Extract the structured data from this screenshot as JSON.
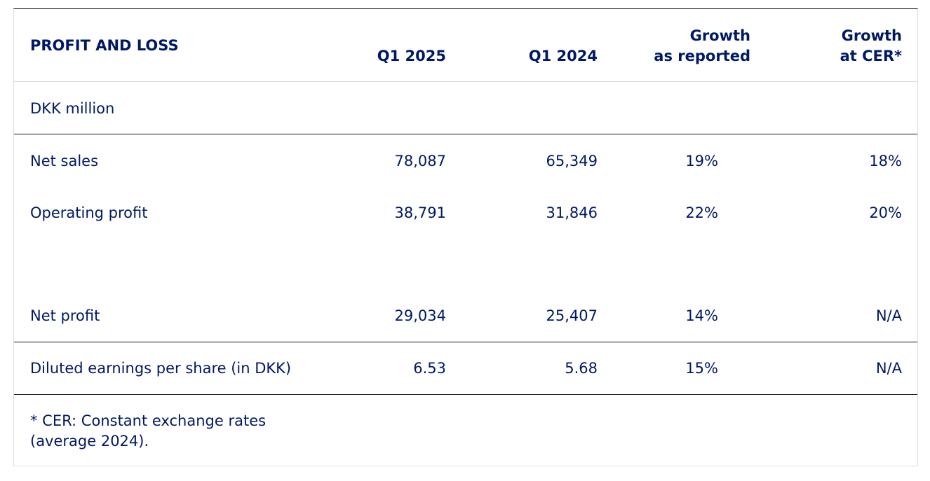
{
  "table": {
    "title": "PROFIT AND LOSS",
    "columns": {
      "q1_2025": "Q1 2025",
      "q1_2024": "Q1 2024",
      "growth_reported_line1": "Growth",
      "growth_reported_line2": "as reported",
      "growth_cer_line1": "Growth",
      "growth_cer_line2": "at CER*"
    },
    "unit": "DKK million",
    "rows": [
      {
        "label": "Net sales",
        "q1_2025": "78,087",
        "q1_2024": "65,349",
        "growth_reported": "19%",
        "growth_cer": "18%"
      },
      {
        "label": "Operating profit",
        "q1_2025": "38,791",
        "q1_2024": "31,846",
        "growth_reported": "22%",
        "growth_cer": "20%"
      },
      {
        "label": "Net profit",
        "q1_2025": "29,034",
        "q1_2024": "25,407",
        "growth_reported": "14%",
        "growth_cer": "N/A"
      },
      {
        "label": "Diluted earnings per share (in DKK)",
        "q1_2025": "6.53",
        "q1_2024": "5.68",
        "growth_reported": "15%",
        "growth_cer": "N/A"
      }
    ],
    "footnote_line1": "* CER: Constant exchange rates",
    "footnote_line2": "(average 2024)."
  },
  "colors": {
    "text": "#001965",
    "rule_dark": "#1a1a1a",
    "rule_light": "#dcdcdc"
  }
}
